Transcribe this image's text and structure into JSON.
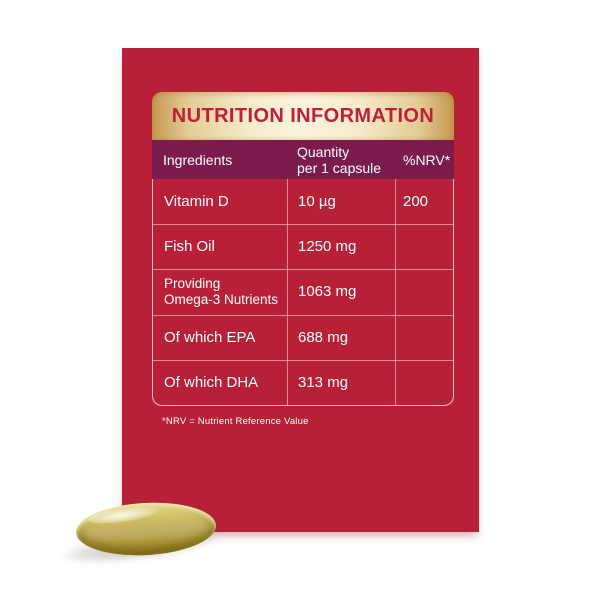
{
  "title": "NUTRITION INFORMATION",
  "table": {
    "header": {
      "ingredients": "Ingredients",
      "quantity": "Quantity\nper 1 capsule",
      "nrv": "%NRV*"
    },
    "rows": [
      {
        "ingredient": "Vitamin D",
        "quantity": "10 µg",
        "nrv": "200"
      },
      {
        "ingredient": "Fish Oil",
        "quantity": "1250 mg",
        "nrv": ""
      },
      {
        "ingredient": "Providing\nOmega-3 Nutrients",
        "quantity": "1063 mg",
        "nrv": ""
      },
      {
        "ingredient": "Of which EPA",
        "quantity": "688 mg",
        "nrv": ""
      },
      {
        "ingredient": "Of which DHA",
        "quantity": "313 mg",
        "nrv": ""
      }
    ],
    "footnote": "*NRV = Nutrient Reference Value"
  },
  "colors": {
    "card_red": "#B82037",
    "header_plum": "#7A1B4B",
    "title_red": "#C31E39",
    "gold_light": "#FBF4DE",
    "gold_dark": "#C6984F",
    "grid_line": "#E8C2B2",
    "text": "#FFFFFF",
    "capsule_gold": "#C9B35F"
  },
  "capsule": {
    "label": "fish-oil-softgel-capsule"
  }
}
